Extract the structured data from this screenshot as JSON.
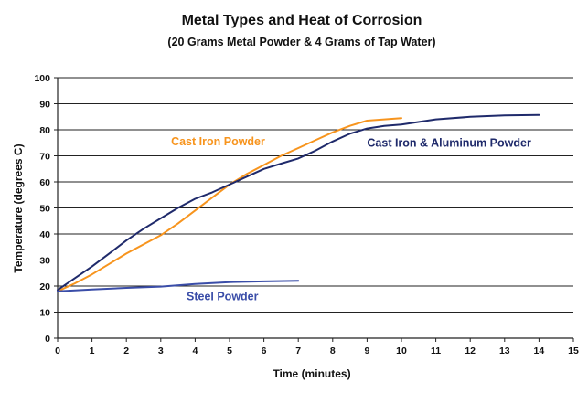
{
  "chart_data": {
    "type": "line",
    "title": "Metal Types and Heat of Corrosion",
    "subtitle": "(20 Grams Metal Powder & 4 Grams of Tap Water)",
    "xlabel": "Time (minutes)",
    "ylabel": "Temperature (degrees C)",
    "xlim": [
      0,
      15
    ],
    "ylim": [
      0,
      100
    ],
    "x_ticks": [
      "0",
      "1",
      "2",
      "3",
      "4",
      "5",
      "6",
      "7",
      "8",
      "9",
      "10",
      "11",
      "12",
      "13",
      "14",
      "15"
    ],
    "y_ticks": [
      "0",
      "10",
      "20",
      "30",
      "40",
      "50",
      "60",
      "70",
      "80",
      "90",
      "100"
    ],
    "grid": "horizontal",
    "legend": "inline labels",
    "series": [
      {
        "name": "Cast Iron Powder",
        "color": "#F7941D",
        "x": [
          0,
          0.5,
          1,
          1.5,
          2,
          2.5,
          3,
          3.5,
          4,
          4.5,
          5,
          5.5,
          6,
          6.5,
          7,
          7.5,
          8,
          8.5,
          9,
          9.5,
          10
        ],
        "y": [
          18,
          21,
          24.5,
          28.5,
          32.5,
          36,
          39.5,
          44,
          49,
          54,
          59,
          63,
          66.5,
          70,
          73,
          76,
          79,
          81.5,
          83.5,
          84,
          84.5
        ]
      },
      {
        "name": "Cast Iron & Aluminum Powder",
        "color": "#1F2A6B",
        "x": [
          0,
          0.5,
          1,
          1.5,
          2,
          2.5,
          3,
          3.5,
          4,
          4.5,
          5,
          5.5,
          6,
          6.5,
          7,
          7.5,
          8,
          8.5,
          9,
          9.5,
          10,
          11,
          12,
          13,
          14
        ],
        "y": [
          18.5,
          23,
          27.5,
          32.5,
          37.5,
          42,
          46,
          50,
          53.5,
          56,
          59,
          62,
          65,
          67,
          69,
          72,
          75.5,
          78.5,
          80.5,
          81.5,
          82,
          84,
          85,
          85.5,
          85.7
        ]
      },
      {
        "name": "Steel Powder",
        "color": "#3A4DA8",
        "x": [
          0,
          1,
          2,
          3,
          4,
          5,
          6,
          7
        ],
        "y": [
          18,
          18.7,
          19.3,
          19.8,
          20.8,
          21.5,
          21.8,
          22
        ]
      }
    ],
    "annotations": [
      {
        "text": "Cast Iron Powder",
        "x": 3.3,
        "y": 74,
        "color": "#F7941D"
      },
      {
        "text": "Cast Iron & Aluminum Powder",
        "x": 9.0,
        "y": 73.5,
        "color": "#1F2A6B"
      },
      {
        "text": "Steel Powder",
        "x": 3.75,
        "y": 14.5,
        "color": "#3A4DA8"
      }
    ]
  }
}
